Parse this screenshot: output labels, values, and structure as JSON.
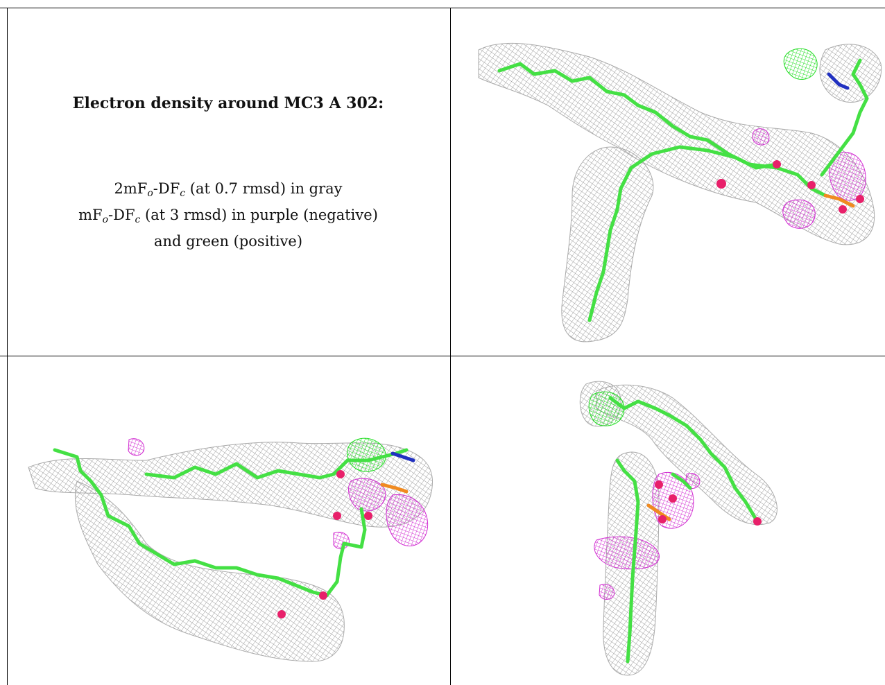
{
  "figure": {
    "title": "Electron density around MC3 A 302:",
    "legend": {
      "line1": {
        "prefix": "2mF",
        "sub1": "o",
        "mid": "-DF",
        "sub2": "c",
        "suffix": " (at 0.7 rmsd) in gray"
      },
      "line2": {
        "prefix": "mF",
        "sub1": "o",
        "mid": "-DF",
        "sub2": "c",
        "suffix": " (at 3 rmsd) in purple (negative)"
      },
      "line3": {
        "text": "and green (positive)"
      }
    },
    "colors": {
      "density_2fofc": "#9a9a9a",
      "fofc_negative": "#d22fd2",
      "fofc_positive": "#22dd22",
      "carbon": "#44e044",
      "oxygen": "#e8206a",
      "nitrogen": "#2030c0",
      "phosphorus": "#f08a20",
      "grid_line": "#000000"
    },
    "panels": [
      {
        "view": "top-right"
      },
      {
        "view": "bottom-left"
      },
      {
        "view": "bottom-right"
      }
    ]
  }
}
